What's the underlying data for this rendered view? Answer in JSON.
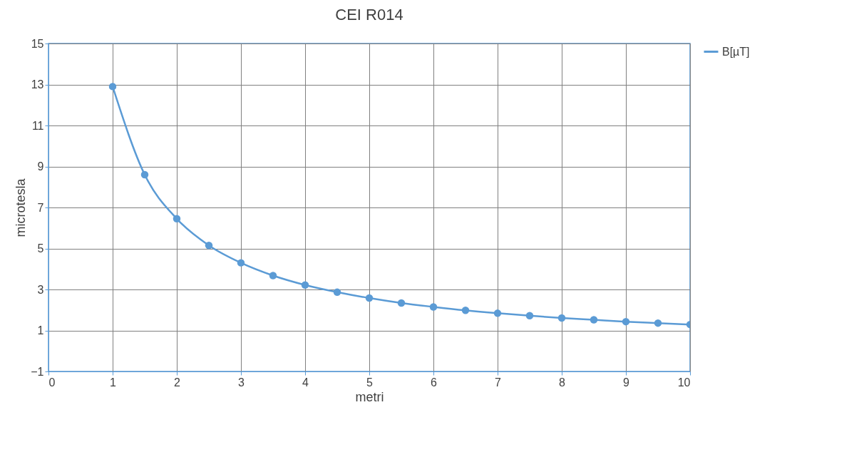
{
  "chart_data": {
    "type": "line",
    "title": "CEI R014",
    "xlabel": "metri",
    "ylabel": "microtesla",
    "xlim": [
      0,
      10
    ],
    "xticks": [
      0,
      1,
      2,
      3,
      4,
      5,
      6,
      7,
      8,
      9,
      10
    ],
    "ylim": [
      -1,
      15
    ],
    "yticks": [
      -1,
      1,
      3,
      5,
      7,
      9,
      11,
      13,
      15
    ],
    "series": [
      {
        "name": "B[µT]",
        "color": "#5b9bd5",
        "x": [
          1,
          1.5,
          2,
          2.5,
          3,
          3.5,
          4,
          4.5,
          5,
          5.5,
          6,
          6.5,
          7,
          7.5,
          8,
          8.5,
          9,
          9.5,
          10
        ],
        "values": [
          12.9,
          8.6,
          6.45,
          5.15,
          4.3,
          3.68,
          3.22,
          2.87,
          2.58,
          2.34,
          2.15,
          1.98,
          1.84,
          1.72,
          1.61,
          1.52,
          1.43,
          1.36,
          1.29
        ]
      }
    ],
    "grid": true,
    "legend": "right",
    "marker": "circle",
    "line_style": "solid"
  }
}
